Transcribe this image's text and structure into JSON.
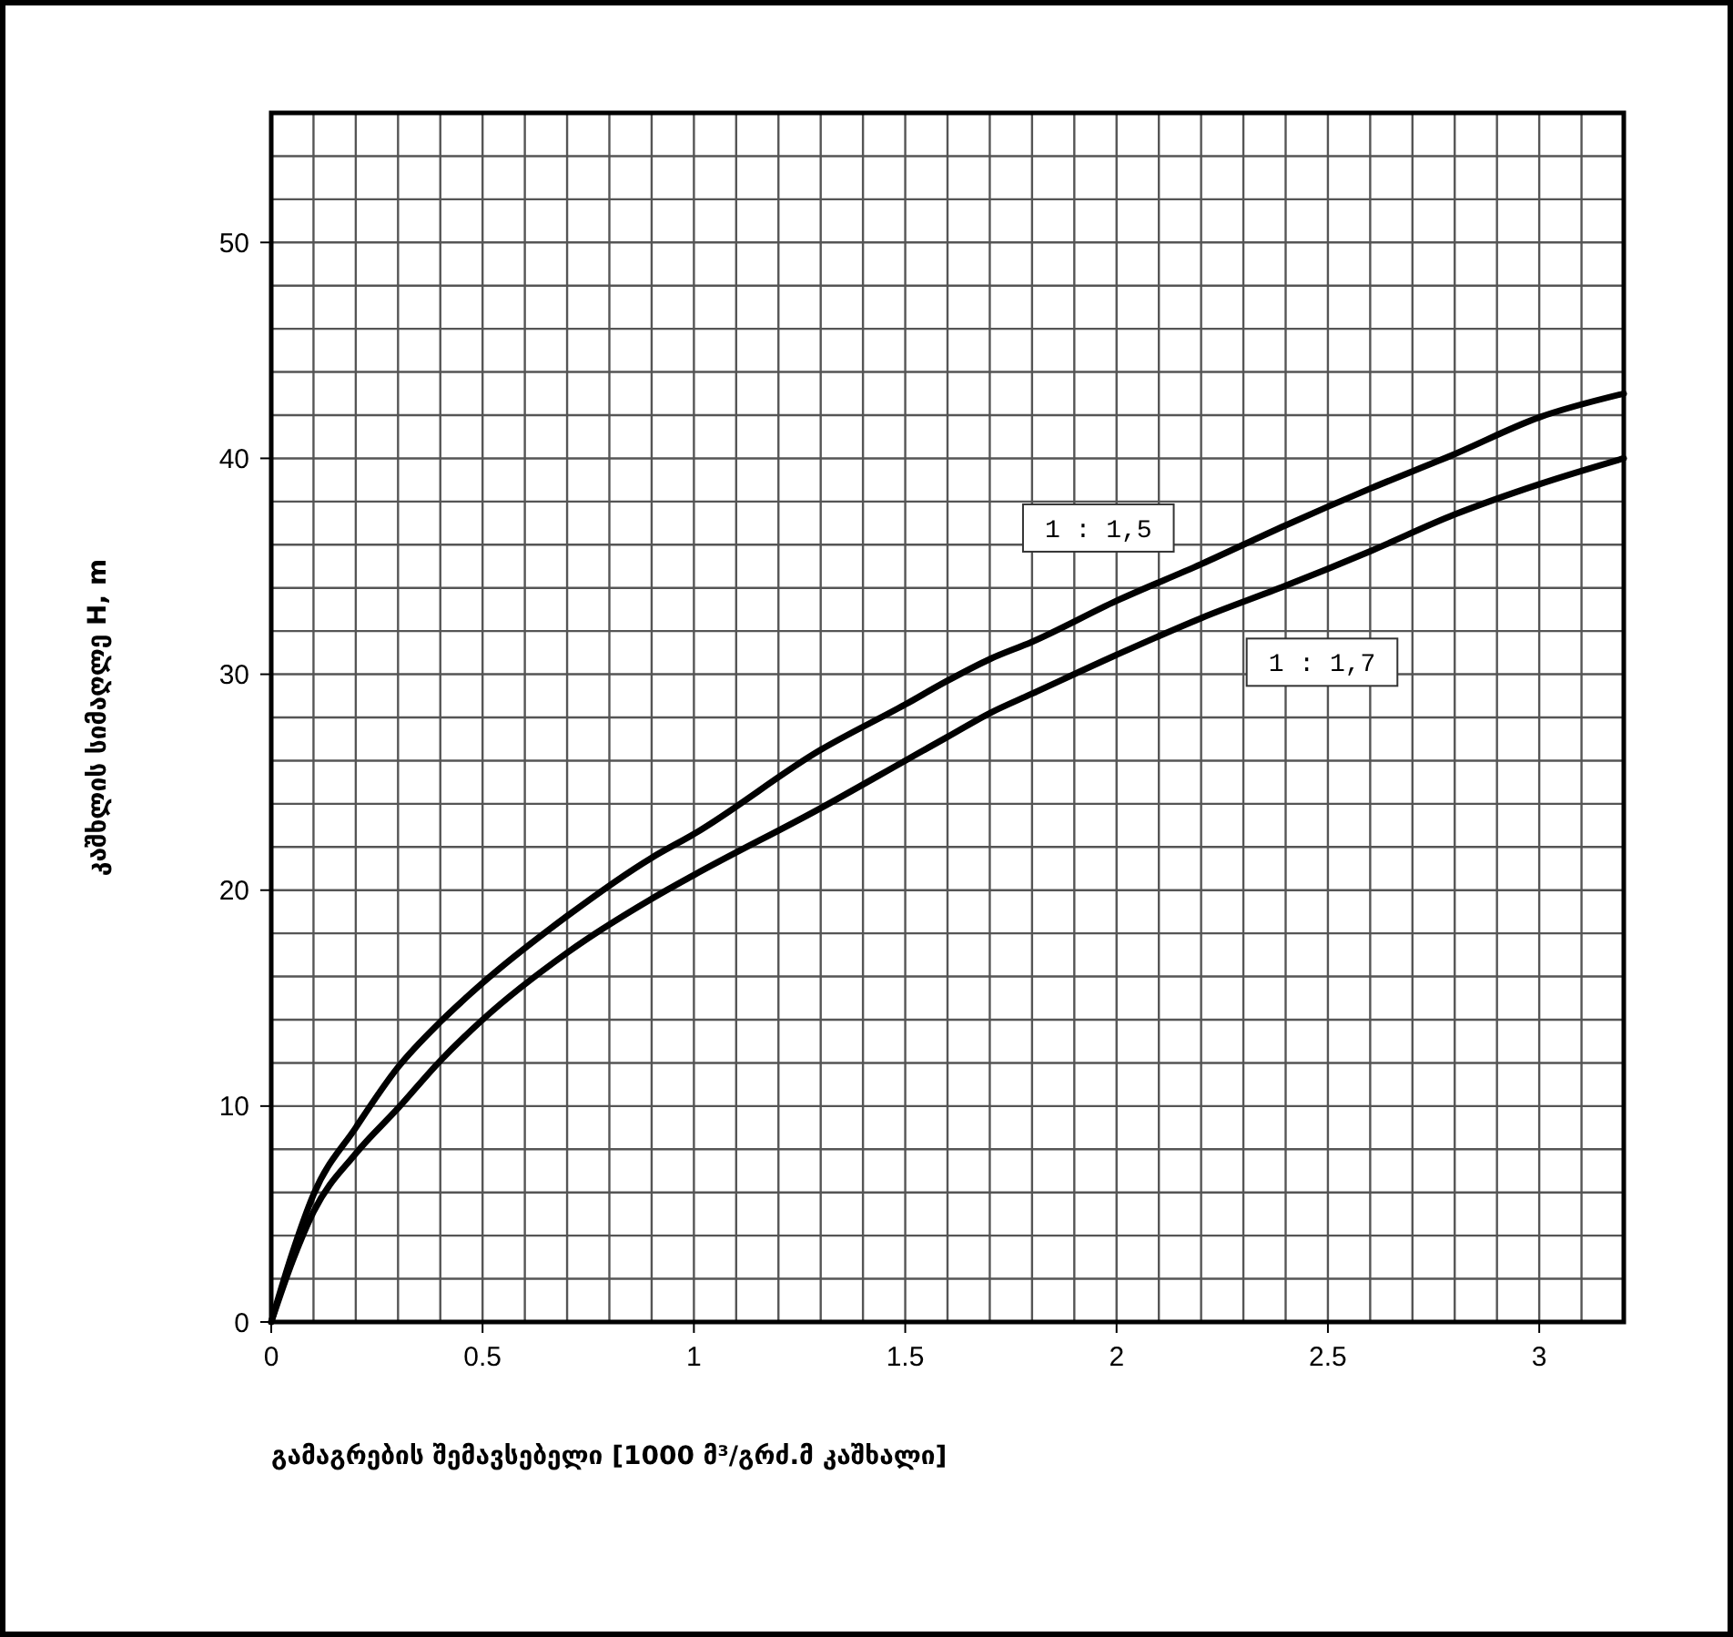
{
  "chart_data": {
    "type": "line",
    "xlabel": "გამაგრების შემავსებელი   [1000 მ³/გრძ.მ კაშხალი]",
    "ylabel": "კაშხლის სიმაღლე H, m",
    "xlim": [
      0,
      3.2
    ],
    "ylim": [
      0,
      56
    ],
    "xticks": [
      0,
      {
        "value": 0.1,
        "label": null
      },
      {
        "value": 0.2,
        "label": null
      },
      {
        "value": 0.3,
        "label": null
      },
      {
        "value": 0.4,
        "label": null
      },
      0.5,
      {
        "value": 0.6,
        "label": null
      },
      {
        "value": 0.7,
        "label": null
      },
      {
        "value": 0.8,
        "label": null
      },
      {
        "value": 0.9,
        "label": null
      },
      1,
      {
        "value": 1.1,
        "label": null
      },
      {
        "value": 1.2,
        "label": null
      },
      {
        "value": 1.3,
        "label": null
      },
      {
        "value": 1.4,
        "label": null
      },
      1.5,
      {
        "value": 1.6,
        "label": null
      },
      {
        "value": 1.7,
        "label": null
      },
      {
        "value": 1.8,
        "label": null
      },
      {
        "value": 1.9,
        "label": null
      },
      2,
      {
        "value": 2.1,
        "label": null
      },
      {
        "value": 2.2,
        "label": null
      },
      {
        "value": 2.3,
        "label": null
      },
      {
        "value": 2.4,
        "label": null
      },
      2.5,
      {
        "value": 2.6,
        "label": null
      },
      {
        "value": 2.7,
        "label": null
      },
      {
        "value": 2.8,
        "label": null
      },
      {
        "value": 2.9,
        "label": null
      },
      3,
      {
        "value": 3.1,
        "label": null
      },
      {
        "value": 3.2,
        "label": null
      }
    ],
    "yticks": [
      0,
      {
        "value": 2,
        "label": null
      },
      {
        "value": 4,
        "label": null
      },
      {
        "value": 6,
        "label": null
      },
      {
        "value": 8,
        "label": null
      },
      10,
      {
        "value": 12,
        "label": null
      },
      {
        "value": 14,
        "label": null
      },
      {
        "value": 16,
        "label": null
      },
      {
        "value": 18,
        "label": null
      },
      20,
      {
        "value": 22,
        "label": null
      },
      {
        "value": 24,
        "label": null
      },
      {
        "value": 26,
        "label": null
      },
      {
        "value": 28,
        "label": null
      },
      30,
      {
        "value": 32,
        "label": null
      },
      {
        "value": 34,
        "label": null
      },
      {
        "value": 36,
        "label": null
      },
      {
        "value": 38,
        "label": null
      },
      40,
      {
        "value": 42,
        "label": null
      },
      {
        "value": 44,
        "label": null
      },
      {
        "value": 46,
        "label": null
      },
      {
        "value": 48,
        "label": null
      },
      50,
      {
        "value": 52,
        "label": null
      },
      {
        "value": 54,
        "label": null
      },
      {
        "value": 56,
        "label": null
      }
    ],
    "grid": true,
    "marker": "none",
    "line_style": "solid",
    "x": [
      0,
      0.05,
      0.1,
      0.2,
      0.3,
      0.4,
      0.5,
      0.7,
      0.9,
      1.0,
      1.3,
      1.5,
      1.6,
      1.7,
      1.8,
      2.0,
      2.2,
      2.4,
      2.6,
      2.8,
      3.0,
      3.2
    ],
    "series": [
      {
        "name": "1 : 1,5",
        "color": "#000000",
        "values": [
          0,
          3.2,
          5.9,
          9.0,
          11.8,
          13.9,
          15.7,
          18.8,
          21.5,
          22.6,
          26.5,
          28.6,
          29.7,
          30.7,
          31.5,
          33.4,
          35.1,
          36.9,
          38.6,
          40.2,
          41.9,
          43.0
        ]
      },
      {
        "name": "1 : 1,7",
        "color": "#000000",
        "values": [
          0,
          2.8,
          5.1,
          7.8,
          9.9,
          12.1,
          14.0,
          17.1,
          19.6,
          20.7,
          23.8,
          26.0,
          27.1,
          28.2,
          29.1,
          30.9,
          32.6,
          34.1,
          35.7,
          37.4,
          38.8,
          40.0
        ]
      }
    ]
  }
}
